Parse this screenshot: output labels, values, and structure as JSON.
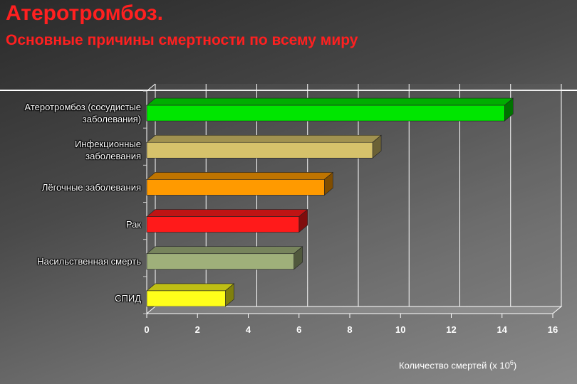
{
  "chart_data": {
    "type": "bar",
    "orientation": "horizontal",
    "title": "Атеротромбоз.",
    "subtitle": "Основные причины смертности по всему миру",
    "categories": [
      "Атеротромбоз (сосудистые заболевания)",
      "Инфекционные заболевания",
      "Лёгочные заболевания",
      "Рак",
      "Насильственная смерть",
      "СПИД"
    ],
    "category_lines": [
      [
        "Атеротромбоз (сосудистые",
        "заболевания)"
      ],
      [
        "Инфекционные",
        "заболевания"
      ],
      [
        "Лёгочные заболевания"
      ],
      [
        "Рак"
      ],
      [
        "Насильственная смерть"
      ],
      [
        "СПИД"
      ]
    ],
    "values": [
      14.1,
      8.9,
      7.0,
      6.0,
      5.8,
      3.1
    ],
    "colors": [
      "#00e600",
      "#d6c26b",
      "#ff9a00",
      "#ff1a1a",
      "#9fb07a",
      "#ffff1a"
    ],
    "xlim": [
      0,
      16
    ],
    "xticks": [
      0,
      2,
      4,
      6,
      8,
      10,
      12,
      14,
      16
    ],
    "xlabel_prefix": "Количество смертей (х 10",
    "xlabel_exp": "6",
    "xlabel_suffix": ")",
    "grid": true
  }
}
